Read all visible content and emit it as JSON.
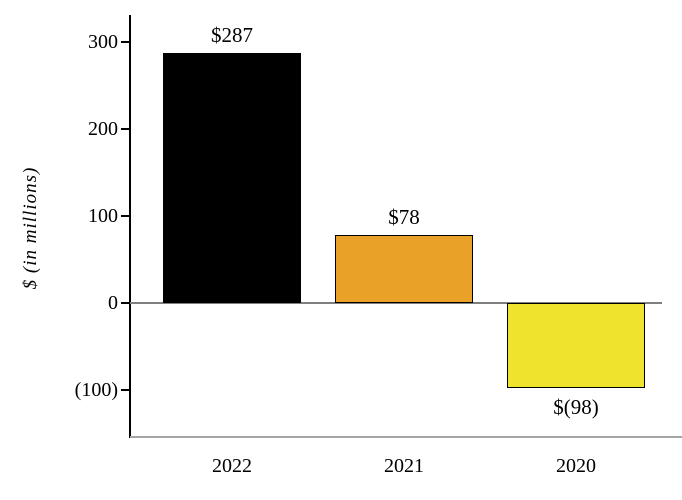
{
  "chart_data": {
    "type": "bar",
    "title": "",
    "ylabel": "$ (in millions)",
    "xlabel": "",
    "categories": [
      "2022",
      "2021",
      "2020"
    ],
    "values": [
      287,
      78,
      -98
    ],
    "value_labels": [
      "$287",
      "$78",
      "$(98)"
    ],
    "bar_colors": [
      "#000000",
      "#E9A227",
      "#F0E32E"
    ],
    "yticks": [
      300,
      200,
      100,
      0,
      -100
    ],
    "ytick_labels": [
      "300",
      "200",
      "100",
      "0",
      "(100)"
    ],
    "ylim": [
      -154,
      330
    ],
    "grid": false,
    "legend": false
  }
}
